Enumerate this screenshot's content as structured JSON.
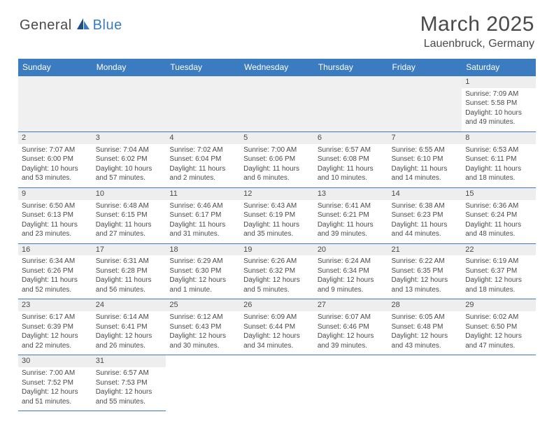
{
  "brand": {
    "part1": "General",
    "part2": "Blue"
  },
  "title": "March 2025",
  "location": "Lauenbruck, Germany",
  "styling": {
    "header_bg": "#3b7bbf",
    "header_fg": "#ffffff",
    "border_color": "#3b7bbf",
    "daynum_bg": "#eeeeee",
    "blank_bg": "#f0f0f0",
    "text_color": "#4a4a4a",
    "page_bg": "#ffffff",
    "month_fontsize": 30,
    "location_fontsize": 16,
    "weekday_fontsize": 12,
    "cell_fontsize": 10
  },
  "weekdays": [
    "Sunday",
    "Monday",
    "Tuesday",
    "Wednesday",
    "Thursday",
    "Friday",
    "Saturday"
  ],
  "weeks": [
    [
      null,
      null,
      null,
      null,
      null,
      null,
      {
        "n": "1",
        "sr": "Sunrise: 7:09 AM",
        "ss": "Sunset: 5:58 PM",
        "dl": "Daylight: 10 hours and 49 minutes."
      }
    ],
    [
      {
        "n": "2",
        "sr": "Sunrise: 7:07 AM",
        "ss": "Sunset: 6:00 PM",
        "dl": "Daylight: 10 hours and 53 minutes."
      },
      {
        "n": "3",
        "sr": "Sunrise: 7:04 AM",
        "ss": "Sunset: 6:02 PM",
        "dl": "Daylight: 10 hours and 57 minutes."
      },
      {
        "n": "4",
        "sr": "Sunrise: 7:02 AM",
        "ss": "Sunset: 6:04 PM",
        "dl": "Daylight: 11 hours and 2 minutes."
      },
      {
        "n": "5",
        "sr": "Sunrise: 7:00 AM",
        "ss": "Sunset: 6:06 PM",
        "dl": "Daylight: 11 hours and 6 minutes."
      },
      {
        "n": "6",
        "sr": "Sunrise: 6:57 AM",
        "ss": "Sunset: 6:08 PM",
        "dl": "Daylight: 11 hours and 10 minutes."
      },
      {
        "n": "7",
        "sr": "Sunrise: 6:55 AM",
        "ss": "Sunset: 6:10 PM",
        "dl": "Daylight: 11 hours and 14 minutes."
      },
      {
        "n": "8",
        "sr": "Sunrise: 6:53 AM",
        "ss": "Sunset: 6:11 PM",
        "dl": "Daylight: 11 hours and 18 minutes."
      }
    ],
    [
      {
        "n": "9",
        "sr": "Sunrise: 6:50 AM",
        "ss": "Sunset: 6:13 PM",
        "dl": "Daylight: 11 hours and 23 minutes."
      },
      {
        "n": "10",
        "sr": "Sunrise: 6:48 AM",
        "ss": "Sunset: 6:15 PM",
        "dl": "Daylight: 11 hours and 27 minutes."
      },
      {
        "n": "11",
        "sr": "Sunrise: 6:46 AM",
        "ss": "Sunset: 6:17 PM",
        "dl": "Daylight: 11 hours and 31 minutes."
      },
      {
        "n": "12",
        "sr": "Sunrise: 6:43 AM",
        "ss": "Sunset: 6:19 PM",
        "dl": "Daylight: 11 hours and 35 minutes."
      },
      {
        "n": "13",
        "sr": "Sunrise: 6:41 AM",
        "ss": "Sunset: 6:21 PM",
        "dl": "Daylight: 11 hours and 39 minutes."
      },
      {
        "n": "14",
        "sr": "Sunrise: 6:38 AM",
        "ss": "Sunset: 6:23 PM",
        "dl": "Daylight: 11 hours and 44 minutes."
      },
      {
        "n": "15",
        "sr": "Sunrise: 6:36 AM",
        "ss": "Sunset: 6:24 PM",
        "dl": "Daylight: 11 hours and 48 minutes."
      }
    ],
    [
      {
        "n": "16",
        "sr": "Sunrise: 6:34 AM",
        "ss": "Sunset: 6:26 PM",
        "dl": "Daylight: 11 hours and 52 minutes."
      },
      {
        "n": "17",
        "sr": "Sunrise: 6:31 AM",
        "ss": "Sunset: 6:28 PM",
        "dl": "Daylight: 11 hours and 56 minutes."
      },
      {
        "n": "18",
        "sr": "Sunrise: 6:29 AM",
        "ss": "Sunset: 6:30 PM",
        "dl": "Daylight: 12 hours and 1 minute."
      },
      {
        "n": "19",
        "sr": "Sunrise: 6:26 AM",
        "ss": "Sunset: 6:32 PM",
        "dl": "Daylight: 12 hours and 5 minutes."
      },
      {
        "n": "20",
        "sr": "Sunrise: 6:24 AM",
        "ss": "Sunset: 6:34 PM",
        "dl": "Daylight: 12 hours and 9 minutes."
      },
      {
        "n": "21",
        "sr": "Sunrise: 6:22 AM",
        "ss": "Sunset: 6:35 PM",
        "dl": "Daylight: 12 hours and 13 minutes."
      },
      {
        "n": "22",
        "sr": "Sunrise: 6:19 AM",
        "ss": "Sunset: 6:37 PM",
        "dl": "Daylight: 12 hours and 18 minutes."
      }
    ],
    [
      {
        "n": "23",
        "sr": "Sunrise: 6:17 AM",
        "ss": "Sunset: 6:39 PM",
        "dl": "Daylight: 12 hours and 22 minutes."
      },
      {
        "n": "24",
        "sr": "Sunrise: 6:14 AM",
        "ss": "Sunset: 6:41 PM",
        "dl": "Daylight: 12 hours and 26 minutes."
      },
      {
        "n": "25",
        "sr": "Sunrise: 6:12 AM",
        "ss": "Sunset: 6:43 PM",
        "dl": "Daylight: 12 hours and 30 minutes."
      },
      {
        "n": "26",
        "sr": "Sunrise: 6:09 AM",
        "ss": "Sunset: 6:44 PM",
        "dl": "Daylight: 12 hours and 34 minutes."
      },
      {
        "n": "27",
        "sr": "Sunrise: 6:07 AM",
        "ss": "Sunset: 6:46 PM",
        "dl": "Daylight: 12 hours and 39 minutes."
      },
      {
        "n": "28",
        "sr": "Sunrise: 6:05 AM",
        "ss": "Sunset: 6:48 PM",
        "dl": "Daylight: 12 hours and 43 minutes."
      },
      {
        "n": "29",
        "sr": "Sunrise: 6:02 AM",
        "ss": "Sunset: 6:50 PM",
        "dl": "Daylight: 12 hours and 47 minutes."
      }
    ],
    [
      {
        "n": "30",
        "sr": "Sunrise: 7:00 AM",
        "ss": "Sunset: 7:52 PM",
        "dl": "Daylight: 12 hours and 51 minutes."
      },
      {
        "n": "31",
        "sr": "Sunrise: 6:57 AM",
        "ss": "Sunset: 7:53 PM",
        "dl": "Daylight: 12 hours and 55 minutes."
      },
      null,
      null,
      null,
      null,
      null
    ]
  ]
}
